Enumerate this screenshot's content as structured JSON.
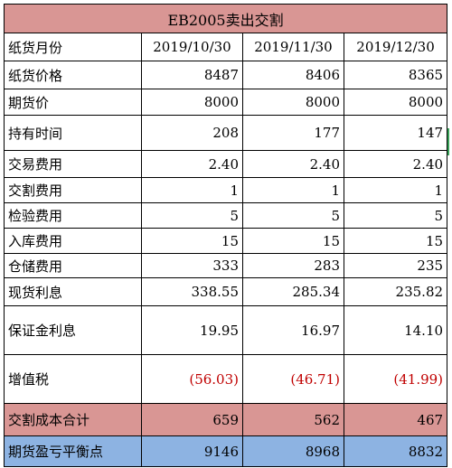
{
  "sheet": {
    "title": "EB2005卖出交割",
    "columns": [
      "2019/10/30",
      "2019/11/30",
      "2019/12/30"
    ],
    "rows": [
      {
        "label": "纸货月份",
        "type": "date",
        "values": [
          "2019/10/30",
          "2019/11/30",
          "2019/12/30"
        ]
      },
      {
        "label": "纸货价格",
        "values": [
          "8487",
          "8406",
          "8365"
        ]
      },
      {
        "label": "期货价",
        "values": [
          "8000",
          "8000",
          "8000"
        ]
      },
      {
        "label": "持有时间",
        "values": [
          "208",
          "177",
          "147"
        ]
      },
      {
        "label": "交易费用",
        "values": [
          "2.40",
          "2.40",
          "2.40"
        ]
      },
      {
        "label": "交割费用",
        "values": [
          "1",
          "1",
          "1"
        ]
      },
      {
        "label": "检验费用",
        "values": [
          "5",
          "5",
          "5"
        ]
      },
      {
        "label": "入库费用",
        "values": [
          "15",
          "15",
          "15"
        ]
      },
      {
        "label": "仓储费用",
        "values": [
          "333",
          "283",
          "235"
        ]
      },
      {
        "label": "现货利息",
        "values": [
          "338.55",
          "285.34",
          "235.82"
        ]
      },
      {
        "label": "保证金利息",
        "values": [
          "19.95",
          "16.97",
          "14.10"
        ]
      },
      {
        "label": "增值税",
        "values": [
          "(56.03)",
          "(46.71)",
          "(41.99)"
        ]
      },
      {
        "label": "交割成本合计",
        "values": [
          "659",
          "562",
          "467"
        ]
      },
      {
        "label": "期货盈亏平衡点",
        "values": [
          "9146",
          "8968",
          "8832"
        ]
      }
    ]
  },
  "colors": {
    "header_fill": "#d99694",
    "cost_fill": "#d99694",
    "breakeven_fill": "#8db3e2",
    "negative_text": "#c00000"
  }
}
